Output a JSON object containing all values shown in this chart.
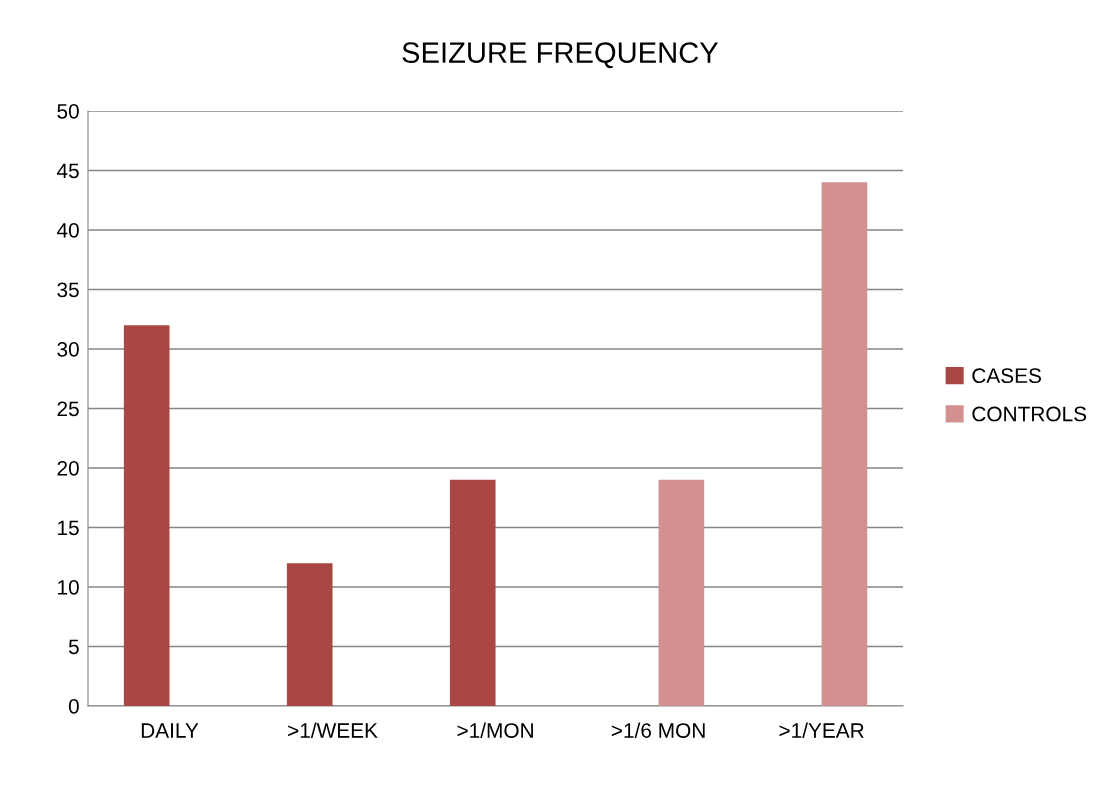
{
  "chart_data": {
    "type": "bar",
    "title": "SEIZURE FREQUENCY",
    "categories": [
      "DAILY",
      ">1/WEEK",
      ">1/MON",
      ">1/6 MON",
      ">1/YEAR"
    ],
    "series": [
      {
        "name": "CASES",
        "color": "#a94744",
        "values": [
          32,
          12,
          19,
          null,
          null
        ]
      },
      {
        "name": "CONTROLS",
        "color": "#d29090",
        "values": [
          null,
          null,
          null,
          19,
          44
        ]
      }
    ],
    "ylim": [
      0,
      50
    ],
    "yticks": [
      0,
      5,
      10,
      15,
      20,
      25,
      30,
      35,
      40,
      45,
      50
    ],
    "grid": "y",
    "legend": "right"
  }
}
